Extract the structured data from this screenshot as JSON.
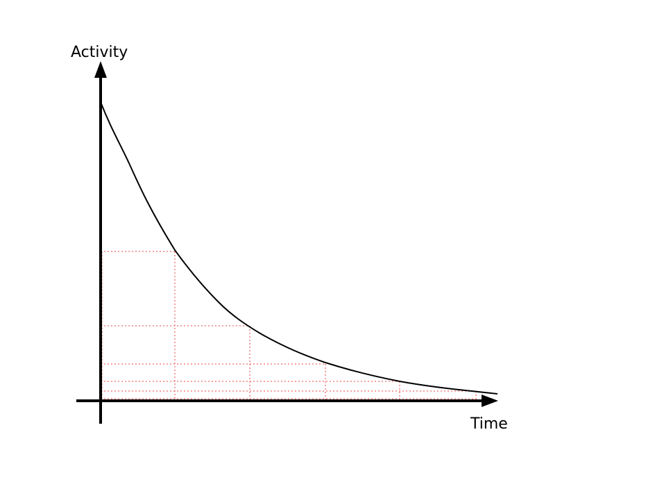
{
  "diagram": {
    "y_axis_label": "Activity",
    "x_axis_label": "Time",
    "curve_color": "#000000",
    "guide_color": "#f08080",
    "axis_color": "#000000"
  }
}
